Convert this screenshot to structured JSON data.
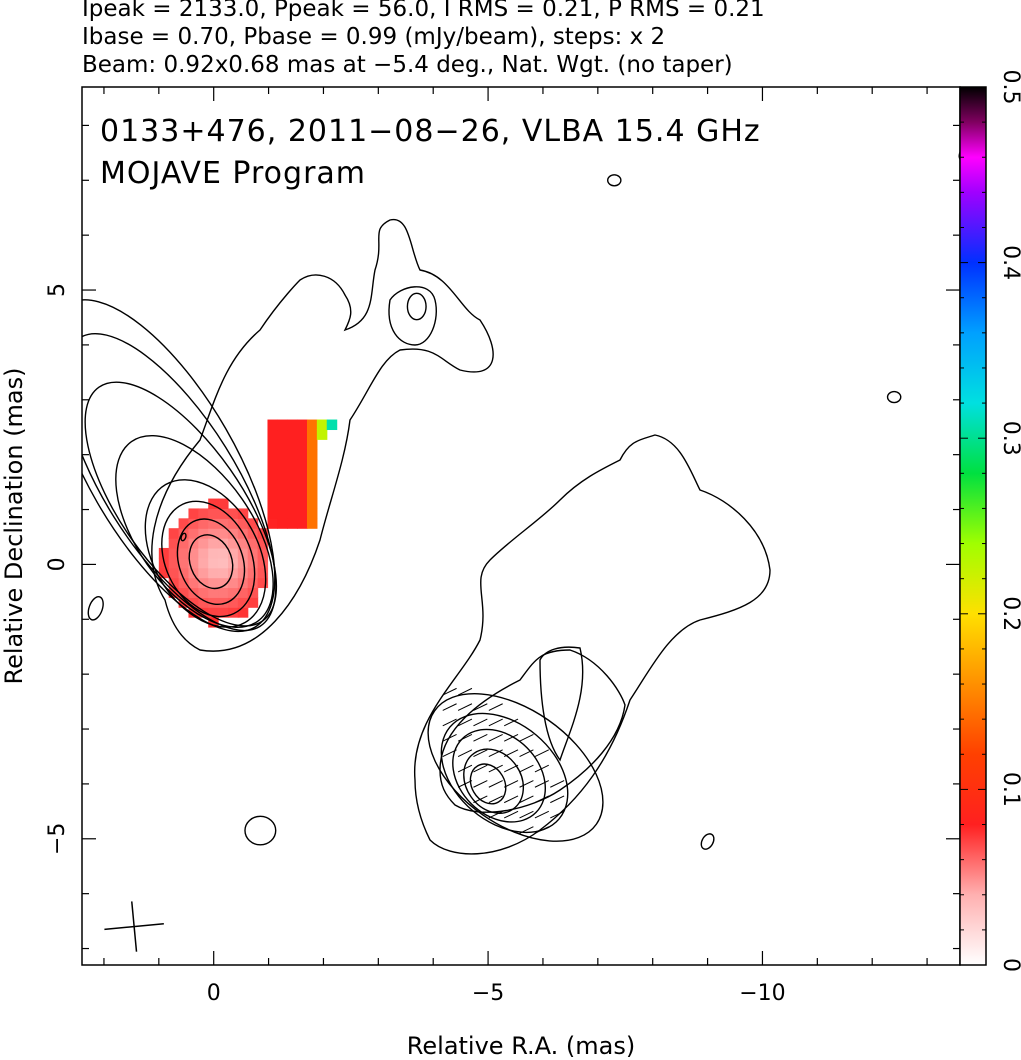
{
  "header": {
    "line1": "Ipeak = 2133.0, Ppeak = 56.0, I RMS = 0.21, P RMS = 0.21",
    "line2": "Ibase = 0.70, Pbase = 0.99 (mJy/beam), steps: x 2",
    "line3": "Beam: 0.92x0.68 mas at −5.4 deg., Nat. Wgt. (no taper)"
  },
  "chart_data": {
    "type": "heatmap",
    "title": "0133+476, 2011−08−26, VLBA 15.4 GHz",
    "subtitle": "MOJAVE Program",
    "xlabel": "Relative R.A. (mas)",
    "ylabel": "Relative Declination (mas)",
    "xlim": [
      2.4,
      -13.6
    ],
    "ylim": [
      -7.3,
      8.7
    ],
    "x_ticks": [
      {
        "value": 0,
        "label": "0"
      },
      {
        "value": -5,
        "label": "−5"
      },
      {
        "value": -10,
        "label": "−10"
      }
    ],
    "y_ticks": [
      {
        "value": 5,
        "label": "5"
      },
      {
        "value": 0,
        "label": "0"
      },
      {
        "value": -5,
        "label": "−5"
      }
    ],
    "colorbar": {
      "min": 0,
      "max": 0.5,
      "ticks": [
        {
          "value": 0,
          "label": "0"
        },
        {
          "value": 0.1,
          "label": "0.1"
        },
        {
          "value": 0.2,
          "label": "0.2"
        },
        {
          "value": 0.3,
          "label": "0.3"
        },
        {
          "value": 0.4,
          "label": "0.4"
        },
        {
          "value": 0.5,
          "label": "0.5"
        }
      ],
      "stops": [
        {
          "v": 0.0,
          "color": "#ffffff"
        },
        {
          "v": 0.04,
          "color": "#ffb0b0"
        },
        {
          "v": 0.08,
          "color": "#ff2020"
        },
        {
          "v": 0.12,
          "color": "#ff4000"
        },
        {
          "v": 0.16,
          "color": "#ff9000"
        },
        {
          "v": 0.2,
          "color": "#ffe000"
        },
        {
          "v": 0.24,
          "color": "#a0ff00"
        },
        {
          "v": 0.28,
          "color": "#00e040"
        },
        {
          "v": 0.32,
          "color": "#00e0e0"
        },
        {
          "v": 0.36,
          "color": "#00a0ff"
        },
        {
          "v": 0.4,
          "color": "#0030ff"
        },
        {
          "v": 0.44,
          "color": "#a000ff"
        },
        {
          "v": 0.46,
          "color": "#ff00ff"
        },
        {
          "v": 0.48,
          "color": "#800060"
        },
        {
          "v": 0.5,
          "color": "#000000"
        }
      ]
    },
    "core": {
      "ra": 0.0,
      "dec": 0.0
    },
    "core_contours": [
      {
        "ra": 0.05,
        "dec": 0.05,
        "a": 0.38,
        "b": 0.5,
        "angle": -20
      },
      {
        "ra": 0.05,
        "dec": 0.05,
        "a": 0.58,
        "b": 0.8,
        "angle": -20
      },
      {
        "ra": 0.1,
        "dec": 0.1,
        "a": 0.78,
        "b": 1.1,
        "angle": -25
      },
      {
        "ra": 0.15,
        "dec": 0.2,
        "a": 0.95,
        "b": 1.45,
        "angle": -30
      },
      {
        "ra": 0.35,
        "dec": 0.6,
        "a": 1.05,
        "b": 2.0,
        "angle": -35
      },
      {
        "ra": 0.6,
        "dec": 1.1,
        "a": 1.1,
        "b": 2.6,
        "angle": -35
      },
      {
        "ra": 0.8,
        "dec": 1.5,
        "a": 1.2,
        "b": 3.1,
        "angle": -32
      },
      {
        "ra": 0.95,
        "dec": 1.8,
        "a": 1.35,
        "b": 3.4,
        "angle": -30
      }
    ],
    "southern_contours": [
      {
        "ra": -5.0,
        "dec": -4.0,
        "a": 0.3,
        "b": 0.38,
        "angle": -30
      },
      {
        "ra": -5.1,
        "dec": -3.95,
        "a": 0.5,
        "b": 0.62,
        "angle": -35
      },
      {
        "ra": -5.2,
        "dec": -3.85,
        "a": 0.72,
        "b": 0.95,
        "angle": -45
      },
      {
        "ra": -5.3,
        "dec": -3.8,
        "a": 0.9,
        "b": 1.3,
        "angle": -50
      },
      {
        "ra": -5.5,
        "dec": -3.7,
        "a": 1.05,
        "b": 1.8,
        "angle": -55
      }
    ],
    "small_contours": [
      {
        "ra": -7.3,
        "dec": 7.0,
        "a": 0.12,
        "b": 0.1,
        "angle": 0
      },
      {
        "ra": -12.4,
        "dec": 3.05,
        "a": 0.12,
        "b": 0.1,
        "angle": 0
      },
      {
        "ra": 2.15,
        "dec": -0.8,
        "a": 0.12,
        "b": 0.22,
        "angle": 20
      },
      {
        "ra": 0.55,
        "dec": 0.5,
        "a": 0.04,
        "b": 0.07,
        "angle": 20
      },
      {
        "ra": -0.85,
        "dec": -4.85,
        "a": 0.28,
        "b": 0.26,
        "angle": 0
      },
      {
        "ra": -3.7,
        "dec": 4.7,
        "a": 0.17,
        "b": 0.24,
        "angle": 0
      },
      {
        "ra": -9.0,
        "dec": -5.05,
        "a": 0.1,
        "b": 0.15,
        "angle": 30
      }
    ],
    "beam": {
      "ra": 1.45,
      "dec": -6.6,
      "major_mas": 0.92,
      "minor_mas": 0.68,
      "pa_deg": -5.4
    }
  }
}
